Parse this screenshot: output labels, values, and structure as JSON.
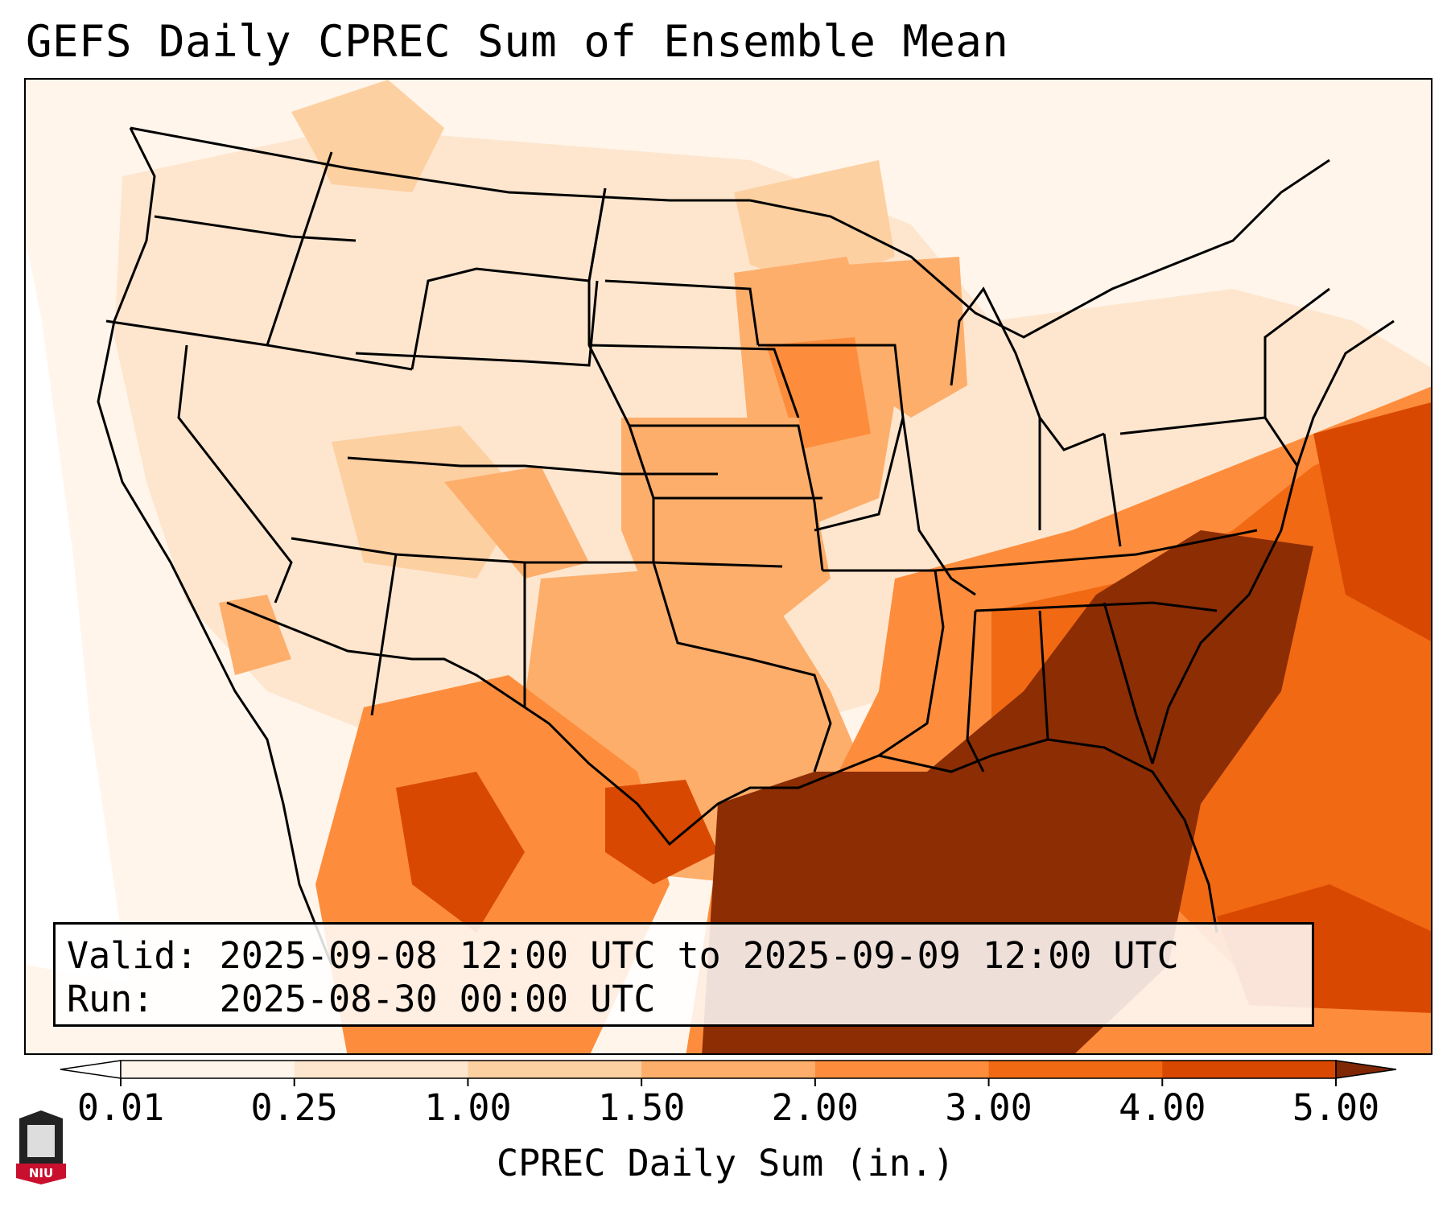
{
  "title": "GEFS Daily CPREC Sum of Ensemble Mean",
  "info": {
    "valid_line": "Valid: 2025-09-08 12:00 UTC to 2025-09-09 12:00 UTC",
    "run_line": "Run:   2025-08-30 00:00 UTC"
  },
  "colorbar": {
    "label": "CPREC Daily Sum (in.)",
    "ticks": [
      "0.01",
      "0.25",
      "1.00",
      "1.50",
      "2.00",
      "3.00",
      "4.00",
      "5.00"
    ],
    "colors": [
      "#fff5eb",
      "#fee6ce",
      "#fdd0a2",
      "#fdae6b",
      "#fd8d3c",
      "#f16913",
      "#d94801",
      "#8c2d04"
    ],
    "under_color": "#ffffff",
    "over_color": "#7f2704"
  },
  "logo": {
    "text": "NIU"
  }
}
